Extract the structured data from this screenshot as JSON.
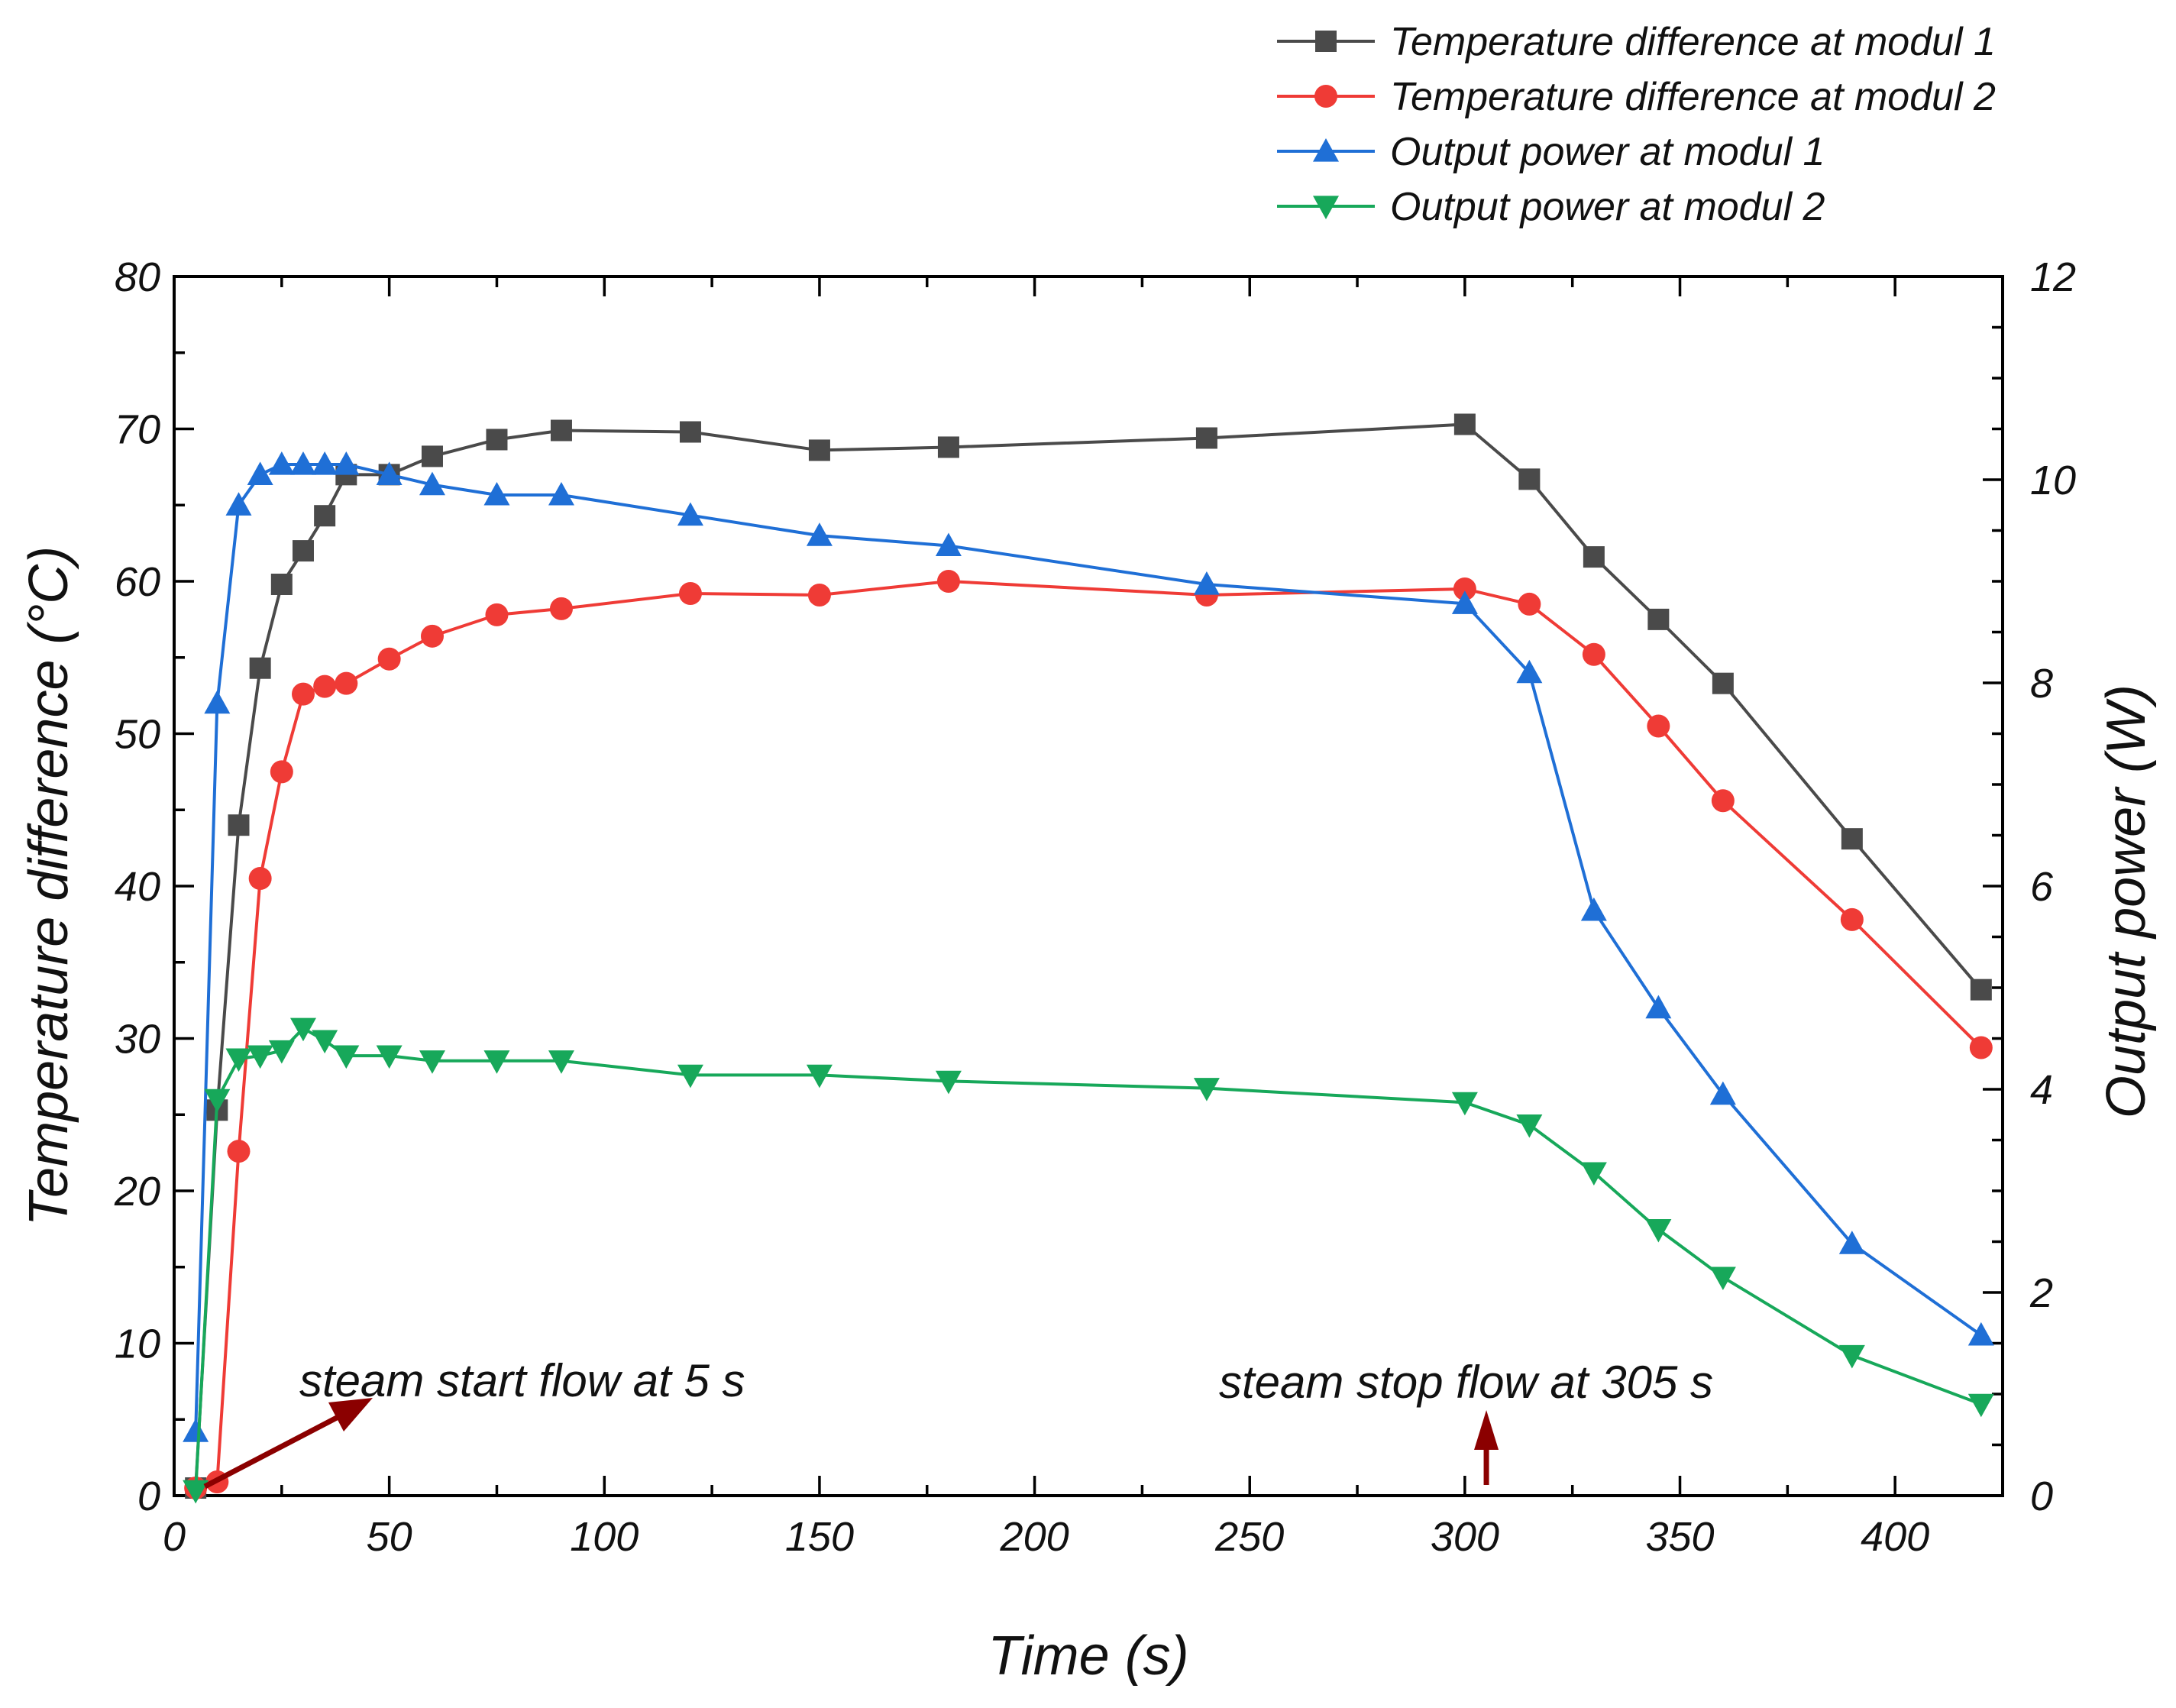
{
  "chart_data": {
    "type": "line",
    "x_axis": {
      "label": "Time (s)",
      "range": [
        0,
        425
      ],
      "ticks": [
        0,
        50,
        100,
        150,
        200,
        250,
        300,
        350,
        400
      ],
      "tick_labels": [
        "0",
        "50",
        "100",
        "150",
        "200",
        "250",
        "300",
        "350",
        "400"
      ]
    },
    "y_axis_left": {
      "label": "Temperature difference (°C)",
      "range": [
        0,
        80
      ],
      "ticks": [
        0,
        10,
        20,
        30,
        40,
        50,
        60,
        70,
        80
      ],
      "tick_labels": [
        "0",
        "10",
        "20",
        "30",
        "40",
        "50",
        "60",
        "70",
        "80"
      ]
    },
    "y_axis_right": {
      "label": "Output power (W)",
      "range": [
        0,
        12
      ],
      "ticks": [
        0,
        2,
        4,
        6,
        8,
        10,
        12
      ],
      "tick_labels": [
        "0",
        "2",
        "4",
        "6",
        "8",
        "10",
        "12"
      ]
    },
    "legend_position": "top-right, above plot",
    "series": [
      {
        "name": "Temperature difference at modul 1",
        "axis": "left",
        "color": "#4a4a4a",
        "marker": "square",
        "x": [
          5,
          10,
          15,
          20,
          25,
          30,
          35,
          40,
          50,
          60,
          75,
          90,
          120,
          150,
          180,
          240,
          300,
          315,
          330,
          345,
          360,
          390,
          420
        ],
        "y": [
          0.5,
          25.3,
          44,
          54.3,
          59.8,
          62,
          64.3,
          67,
          67,
          68.2,
          69.3,
          69.9,
          69.8,
          68.6,
          68.8,
          69.4,
          70.3,
          66.7,
          61.6,
          57.5,
          53.3,
          43.1,
          33.2
        ]
      },
      {
        "name": "Temperature difference at modul 2",
        "axis": "left",
        "color": "#ef3b36",
        "marker": "circle",
        "x": [
          5,
          10,
          15,
          20,
          25,
          30,
          35,
          40,
          50,
          60,
          75,
          90,
          120,
          150,
          180,
          240,
          300,
          315,
          330,
          345,
          360,
          390,
          420
        ],
        "y": [
          0.5,
          0.9,
          22.6,
          40.5,
          47.5,
          52.6,
          53.1,
          53.3,
          54.9,
          56.4,
          57.8,
          58.2,
          59.2,
          59.1,
          60,
          59.1,
          59.5,
          58.5,
          55.2,
          50.5,
          45.6,
          37.8,
          29.4
        ]
      },
      {
        "name": "Output power at modul 1",
        "axis": "right",
        "color": "#1f6fd6",
        "marker": "triangle-up",
        "x": [
          5,
          10,
          15,
          20,
          25,
          30,
          35,
          40,
          50,
          60,
          75,
          90,
          120,
          150,
          180,
          240,
          300,
          315,
          330,
          345,
          360,
          390,
          420
        ],
        "y": [
          0.63,
          7.8,
          9.75,
          10.05,
          10.15,
          10.15,
          10.15,
          10.15,
          10.05,
          9.95,
          9.85,
          9.85,
          9.65,
          9.45,
          9.35,
          8.97,
          8.78,
          8.1,
          5.76,
          4.8,
          3.95,
          2.48,
          1.58
        ]
      },
      {
        "name": "Output power at modul 2",
        "axis": "right",
        "color": "#17a85a",
        "marker": "triangle-down",
        "x": [
          5,
          10,
          15,
          20,
          25,
          30,
          35,
          40,
          50,
          60,
          75,
          90,
          120,
          150,
          180,
          240,
          300,
          315,
          330,
          345,
          360,
          390,
          420
        ],
        "y": [
          0.05,
          3.9,
          4.3,
          4.33,
          4.38,
          4.6,
          4.48,
          4.33,
          4.33,
          4.28,
          4.28,
          4.28,
          4.14,
          4.14,
          4.08,
          4.01,
          3.87,
          3.65,
          3.18,
          2.62,
          2.15,
          1.38,
          0.9
        ]
      }
    ],
    "annotations": [
      {
        "text": "steam start flow at 5 s",
        "x": 5,
        "arrow_color": "#8b0000"
      },
      {
        "text": "steam stop flow at 305 s",
        "x": 305,
        "arrow_color": "#8b0000"
      }
    ]
  }
}
